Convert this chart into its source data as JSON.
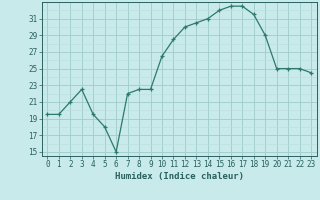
{
  "x": [
    0,
    1,
    2,
    3,
    4,
    5,
    6,
    7,
    8,
    9,
    10,
    11,
    12,
    13,
    14,
    15,
    16,
    17,
    18,
    19,
    20,
    21,
    22,
    23
  ],
  "y": [
    19.5,
    19.5,
    21,
    22.5,
    19.5,
    18,
    15,
    22,
    22.5,
    22.5,
    26.5,
    28.5,
    30,
    30.5,
    31,
    32,
    32.5,
    32.5,
    31.5,
    29,
    25,
    25,
    25,
    24.5
  ],
  "line_color": "#2d7a6a",
  "marker": "+",
  "bg_color": "#c8eaea",
  "grid_minor_color": "#b8dede",
  "grid_major_color": "#a0cccc",
  "xlabel": "Humidex (Indice chaleur)",
  "xlim": [
    -0.5,
    23.5
  ],
  "ylim": [
    14.5,
    33.0
  ],
  "yticks": [
    15,
    17,
    19,
    21,
    23,
    25,
    27,
    29,
    31
  ],
  "xticks": [
    0,
    1,
    2,
    3,
    4,
    5,
    6,
    7,
    8,
    9,
    10,
    11,
    12,
    13,
    14,
    15,
    16,
    17,
    18,
    19,
    20,
    21,
    22,
    23
  ],
  "font_color": "#2a6060",
  "tick_fontsize": 5.5,
  "label_fontsize": 6.5
}
